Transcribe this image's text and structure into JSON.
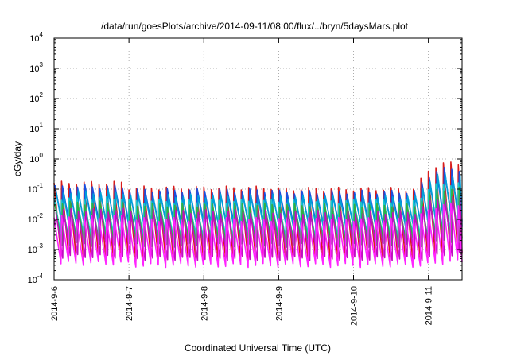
{
  "chart_data": {
    "type": "line",
    "title": "/data/run/goesPlots/archive/2014-09-11/08:00/flux/../bryn/5daysMars.plot",
    "xlabel": "Coordinated Universal Time (UTC)",
    "ylabel": "cGy/day",
    "y_scale": "log",
    "ylim": [
      0.0001,
      10000
    ],
    "xlim": [
      0,
      5.45
    ],
    "x_unit": "days since 2014-9-6 00:00 UTC",
    "x_ticks": [
      {
        "x": 0,
        "label": "2014-9-6"
      },
      {
        "x": 1,
        "label": "2014-9-7"
      },
      {
        "x": 2,
        "label": "2014-9-8"
      },
      {
        "x": 3,
        "label": "2014-9-9"
      },
      {
        "x": 4,
        "label": "2014-9-10"
      },
      {
        "x": 5,
        "label": "2014-9-11"
      }
    ],
    "y_ticks": [
      {
        "y": 0.0001,
        "base": "10",
        "exp": "-4"
      },
      {
        "y": 0.001,
        "base": "10",
        "exp": "-3"
      },
      {
        "y": 0.01,
        "base": "10",
        "exp": "-2"
      },
      {
        "y": 0.1,
        "base": "10",
        "exp": "-1"
      },
      {
        "y": 1,
        "base": "10",
        "exp": "0"
      },
      {
        "y": 10,
        "base": "10",
        "exp": "1"
      },
      {
        "y": 100,
        "base": "10",
        "exp": "2"
      },
      {
        "y": 1000,
        "base": "10",
        "exp": "3"
      },
      {
        "y": 10000,
        "base": "10",
        "exp": "4"
      }
    ],
    "grid": true,
    "sawtooth_period_days": 0.1,
    "series": [
      {
        "color": "#d81b1b",
        "peak": [
          0.16,
          0.11,
          0.11,
          0.1,
          0.1,
          0.7
        ],
        "trough": [
          0.0006,
          0.0005,
          0.0005,
          0.0005,
          0.0005,
          0.0008
        ]
      },
      {
        "color": "#1a4fe0",
        "peak": [
          0.12,
          0.09,
          0.09,
          0.08,
          0.08,
          0.45
        ],
        "trough": [
          0.007,
          0.006,
          0.006,
          0.006,
          0.006,
          0.01
        ]
      },
      {
        "color": "#00a0d8",
        "peak": [
          0.08,
          0.06,
          0.06,
          0.055,
          0.055,
          0.3
        ],
        "trough": [
          0.004,
          0.0035,
          0.0035,
          0.0035,
          0.0035,
          0.006
        ]
      },
      {
        "color": "#1cc8c8",
        "peak": [
          0.05,
          0.04,
          0.04,
          0.04,
          0.04,
          0.15
        ],
        "trough": [
          0.003,
          0.0028,
          0.0028,
          0.0028,
          0.0028,
          0.004
        ]
      },
      {
        "color": "#30b040",
        "peak": [
          0.035,
          0.03,
          0.03,
          0.03,
          0.03,
          0.1
        ],
        "trough": [
          0.0015,
          0.0014,
          0.0014,
          0.0014,
          0.0014,
          0.002
        ]
      },
      {
        "color": "#c010c0",
        "peak": [
          0.02,
          0.018,
          0.018,
          0.017,
          0.017,
          0.05
        ],
        "trough": [
          0.0006,
          0.0005,
          0.0005,
          0.0005,
          0.0005,
          0.0007
        ]
      },
      {
        "color": "#ff22ff",
        "peak": [
          0.012,
          0.01,
          0.01,
          0.01,
          0.01,
          0.03
        ],
        "trough": [
          0.00035,
          0.0003,
          0.0003,
          0.0003,
          0.0003,
          0.0004
        ]
      }
    ]
  }
}
